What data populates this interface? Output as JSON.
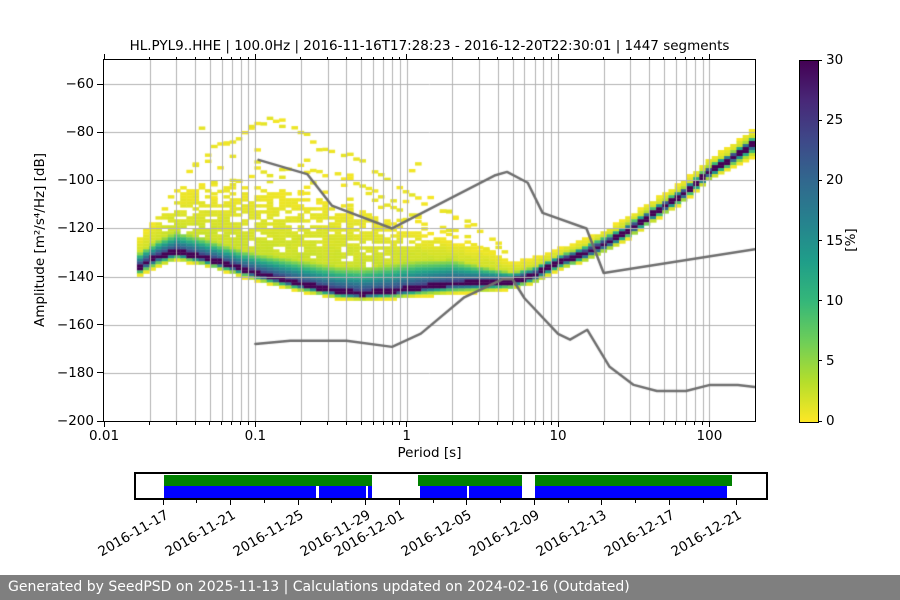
{
  "header": {
    "title": "HL.PYL9..HHE | 100.0Hz | 2016-11-16T17:28:23 - 2016-12-20T22:30:01 | 1447 segments"
  },
  "chart_data": {
    "type": "heatmap",
    "title": "HL.PYL9..HHE | 100.0Hz | 2016-11-16T17:28:23 - 2016-12-20T22:30:01 | 1447 segments",
    "xlabel": "Period [s]",
    "ylabel": "Amplitude [m²/s⁴/Hz] [dB]",
    "x_scale": "log",
    "xlim": [
      0.01,
      200
    ],
    "ylim": [
      -200,
      -50
    ],
    "grid": true,
    "x_ticks": [
      {
        "v": 0.01,
        "label": "0.01"
      },
      {
        "v": 0.1,
        "label": "0.1"
      },
      {
        "v": 1,
        "label": "1"
      },
      {
        "v": 10,
        "label": "10"
      },
      {
        "v": 100,
        "label": "100"
      }
    ],
    "y_ticks": [
      {
        "v": -60,
        "label": "−60"
      },
      {
        "v": -80,
        "label": "−80"
      },
      {
        "v": -100,
        "label": "−100"
      },
      {
        "v": -120,
        "label": "−120"
      },
      {
        "v": -140,
        "label": "−140"
      },
      {
        "v": -160,
        "label": "−160"
      },
      {
        "v": -180,
        "label": "−180"
      },
      {
        "v": -200,
        "label": "−200"
      }
    ],
    "colorbar": {
      "label": "[%]",
      "min": 0,
      "max": 30,
      "ticks": [
        0,
        5,
        10,
        15,
        20,
        25,
        30
      ],
      "colormap": "viridis_r"
    },
    "noise_models": {
      "name": "Peterson NHNM / NLNM",
      "color": "#6e6e6e",
      "nhnm": [
        [
          0.105,
          -91.5
        ],
        [
          0.22,
          -97.4
        ],
        [
          0.32,
          -110.5
        ],
        [
          0.8,
          -120.0
        ],
        [
          3.8,
          -98.0
        ],
        [
          4.6,
          -96.5
        ],
        [
          6.3,
          -101.0
        ],
        [
          7.9,
          -113.5
        ],
        [
          15.4,
          -120.0
        ],
        [
          20.0,
          -138.5
        ],
        [
          200.0,
          -128.6
        ]
      ],
      "nlnm": [
        [
          0.1,
          -168.0
        ],
        [
          0.17,
          -166.7
        ],
        [
          0.4,
          -166.7
        ],
        [
          0.8,
          -169.2
        ],
        [
          1.24,
          -163.7
        ],
        [
          2.4,
          -148.6
        ],
        [
          4.3,
          -141.1
        ],
        [
          5.0,
          -141.1
        ],
        [
          6.0,
          -149.0
        ],
        [
          10.0,
          -163.8
        ],
        [
          12.0,
          -166.2
        ],
        [
          15.6,
          -162.1
        ],
        [
          21.9,
          -177.5
        ],
        [
          31.6,
          -185.0
        ],
        [
          45.0,
          -187.5
        ],
        [
          70.0,
          -187.5
        ],
        [
          101.0,
          -185.0
        ],
        [
          154.0,
          -185.0
        ],
        [
          200.0,
          -185.9
        ]
      ]
    },
    "density_profile": {
      "fields": [
        "period_s",
        "top_db",
        "green_db",
        "ridge_db",
        "bottom_db"
      ],
      "points": [
        [
          0.0165,
          -126,
          -131,
          -136.5,
          -140.5
        ],
        [
          0.022,
          -116,
          -125.5,
          -132,
          -136.5
        ],
        [
          0.03,
          -104,
          -121.5,
          -129.5,
          -133.5
        ],
        [
          0.045,
          -102,
          -124,
          -132,
          -135.5
        ],
        [
          0.07,
          -102.5,
          -128,
          -135.5,
          -139
        ],
        [
          0.1,
          -103.5,
          -130.5,
          -138.5,
          -142
        ],
        [
          0.2,
          -106,
          -133.5,
          -143,
          -146.5
        ],
        [
          0.35,
          -110,
          -136,
          -146,
          -149.5
        ],
        [
          0.5,
          -113,
          -136.5,
          -147,
          -150
        ],
        [
          0.8,
          -118,
          -135,
          -146,
          -149.5
        ],
        [
          1.2,
          -122,
          -133.5,
          -144.5,
          -148.5
        ],
        [
          2.0,
          -126,
          -133,
          -143,
          -147.5
        ],
        [
          3.5,
          -130,
          -136.5,
          -142.5,
          -146.5
        ],
        [
          5.0,
          -134.5,
          -138.5,
          -142,
          -145.5
        ],
        [
          7.0,
          -132.5,
          -136,
          -139.5,
          -143
        ],
        [
          10,
          -129,
          -131.5,
          -134,
          -137.5
        ],
        [
          15,
          -125,
          -127.5,
          -130.5,
          -134
        ],
        [
          22,
          -120,
          -122.5,
          -125.5,
          -129
        ],
        [
          30,
          -115,
          -117.5,
          -120.5,
          -124
        ],
        [
          50,
          -106,
          -108.5,
          -111,
          -114.5
        ],
        [
          70,
          -100,
          -102.5,
          -105,
          -108.5
        ],
        [
          100,
          -91.5,
          -94,
          -96.5,
          -100
        ],
        [
          140,
          -86,
          -88.5,
          -91,
          -95
        ],
        [
          200,
          -78.5,
          -81.5,
          -84.5,
          -90
        ]
      ]
    },
    "outlier_arcs": [
      [
        [
          0.035,
          -96
        ],
        [
          0.05,
          -89
        ],
        [
          0.07,
          -83
        ],
        [
          0.1,
          -78
        ],
        [
          0.13,
          -75
        ],
        [
          0.18,
          -78
        ],
        [
          0.27,
          -86.5
        ],
        [
          0.4,
          -90
        ],
        [
          0.55,
          -92.5
        ],
        [
          0.7,
          -98.5
        ],
        [
          1.0,
          -105
        ],
        [
          1.4,
          -109.5
        ],
        [
          2.0,
          -115
        ],
        [
          3.0,
          -122
        ],
        [
          4.5,
          -130
        ]
      ],
      [
        [
          0.05,
          -107
        ],
        [
          0.08,
          -100
        ],
        [
          0.12,
          -96
        ],
        [
          0.2,
          -95
        ],
        [
          0.3,
          -97
        ],
        [
          0.45,
          -101
        ],
        [
          0.65,
          -105
        ],
        [
          0.9,
          -110
        ]
      ],
      [
        [
          0.6,
          -108
        ],
        [
          1.0,
          -113.5
        ],
        [
          1.8,
          -120
        ],
        [
          3.0,
          -127
        ],
        [
          4.2,
          -131.5
        ]
      ],
      [
        [
          0.9,
          -114
        ],
        [
          1.6,
          -120.5
        ],
        [
          2.6,
          -126
        ],
        [
          3.8,
          -130.5
        ]
      ],
      [
        [
          1.4,
          -110
        ],
        [
          2.2,
          -116
        ],
        [
          3.2,
          -122
        ],
        [
          4.5,
          -128
        ]
      ]
    ]
  },
  "timeline": {
    "date_labels": [
      "2016-11-17",
      "2016-11-21",
      "2016-11-25",
      "2016-11-29",
      "2016-12-01",
      "2016-12-05",
      "2016-12-09",
      "2016-12-13",
      "2016-12-17",
      "2016-12-21"
    ],
    "minor_tick_day_offsets": [
      2,
      6,
      10,
      16,
      20,
      24,
      28,
      32
    ],
    "green_color": "#008000",
    "blue_color": "#0000ff",
    "coverage_green": [
      [
        0.044,
        0.375
      ],
      [
        0.448,
        0.612
      ],
      [
        0.633,
        0.946
      ]
    ],
    "coverage_blue": [
      [
        0.044,
        0.286
      ],
      [
        0.29,
        0.365
      ],
      [
        0.369,
        0.375
      ],
      [
        0.451,
        0.525
      ],
      [
        0.529,
        0.612
      ],
      [
        0.633,
        0.938
      ]
    ]
  },
  "footer": {
    "text": "Generated by SeedPSD on 2025-11-13 | Calculations updated on 2024-02-16 (Outdated)"
  }
}
